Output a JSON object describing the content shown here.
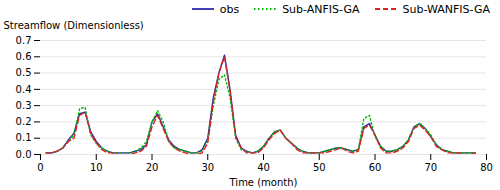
{
  "chart_data": {
    "type": "line",
    "xlabel": "Time (month)",
    "ylabel": "Streamflow (Dimensionless)",
    "xlim": [
      0,
      80
    ],
    "ylim": [
      0,
      0.7
    ],
    "xticks": [
      0,
      10,
      20,
      30,
      40,
      50,
      60,
      70,
      80
    ],
    "yticks": [
      {
        "value": 0,
        "label": "0.0"
      },
      0.1,
      0.2,
      0.3,
      0.4,
      0.5,
      0.6,
      0.7
    ],
    "grid": true,
    "legend": "upper right",
    "x": [
      1,
      2,
      3,
      4,
      5,
      6,
      7,
      8,
      9,
      10,
      11,
      12,
      13,
      14,
      15,
      16,
      17,
      18,
      19,
      20,
      21,
      22,
      23,
      24,
      25,
      26,
      27,
      28,
      29,
      30,
      31,
      32,
      33,
      34,
      35,
      36,
      37,
      38,
      39,
      40,
      41,
      42,
      43,
      44,
      45,
      46,
      47,
      48,
      49,
      50,
      51,
      52,
      53,
      54,
      55,
      56,
      57,
      58,
      59,
      60,
      61,
      62,
      63,
      64,
      65,
      66,
      67,
      68,
      69,
      70,
      71,
      72,
      73,
      74,
      75,
      76,
      77,
      78
    ],
    "series": [
      {
        "name": "obs",
        "color": "#2a2aaa",
        "line_style": "solid",
        "values": [
          0.01,
          0.01,
          0.02,
          0.04,
          0.09,
          0.13,
          0.25,
          0.26,
          0.14,
          0.08,
          0.04,
          0.02,
          0.01,
          0.01,
          0.01,
          0.01,
          0.02,
          0.03,
          0.06,
          0.2,
          0.25,
          0.17,
          0.09,
          0.05,
          0.03,
          0.02,
          0.01,
          0.01,
          0.03,
          0.1,
          0.35,
          0.5,
          0.61,
          0.4,
          0.12,
          0.04,
          0.02,
          0.01,
          0.02,
          0.05,
          0.1,
          0.14,
          0.15,
          0.1,
          0.07,
          0.04,
          0.02,
          0.01,
          0.01,
          0.01,
          0.02,
          0.03,
          0.04,
          0.04,
          0.03,
          0.02,
          0.03,
          0.17,
          0.19,
          0.12,
          0.05,
          0.02,
          0.02,
          0.03,
          0.05,
          0.09,
          0.17,
          0.19,
          0.16,
          0.11,
          0.06,
          0.03,
          0.02,
          0.01,
          0.01,
          0.01,
          0.01,
          0.01
        ]
      },
      {
        "name": "Sub-ANFIS-GA",
        "color": "#00bb00",
        "line_style": "dotted",
        "values": [
          0.01,
          0.01,
          0.02,
          0.04,
          0.08,
          0.12,
          0.28,
          0.29,
          0.12,
          0.07,
          0.04,
          0.02,
          0.01,
          0.01,
          0.01,
          0.01,
          0.02,
          0.04,
          0.08,
          0.2,
          0.27,
          0.2,
          0.08,
          0.04,
          0.03,
          0.02,
          0.01,
          0.01,
          0.02,
          0.08,
          0.3,
          0.46,
          0.49,
          0.35,
          0.1,
          0.03,
          0.02,
          0.01,
          0.02,
          0.05,
          0.1,
          0.14,
          0.15,
          0.1,
          0.07,
          0.04,
          0.02,
          0.01,
          0.01,
          0.01,
          0.02,
          0.03,
          0.04,
          0.04,
          0.03,
          0.02,
          0.03,
          0.22,
          0.24,
          0.11,
          0.05,
          0.02,
          0.02,
          0.03,
          0.05,
          0.09,
          0.17,
          0.19,
          0.16,
          0.12,
          0.06,
          0.03,
          0.02,
          0.01,
          0.01,
          0.01,
          0.01,
          0.01
        ]
      },
      {
        "name": "Sub-WANFIS-GA",
        "color": "#dd2222",
        "line_style": "dashed",
        "values": [
          0.01,
          0.01,
          0.02,
          0.04,
          0.08,
          0.1,
          0.24,
          0.26,
          0.13,
          0.07,
          0.03,
          0.01,
          0.01,
          0.0,
          0.0,
          0.0,
          0.01,
          0.02,
          0.05,
          0.17,
          0.24,
          0.16,
          0.08,
          0.04,
          0.02,
          0.01,
          0.0,
          0.0,
          0.01,
          0.07,
          0.33,
          0.5,
          0.6,
          0.39,
          0.11,
          0.04,
          0.01,
          0.01,
          0.01,
          0.04,
          0.09,
          0.13,
          0.15,
          0.1,
          0.07,
          0.03,
          0.01,
          0.01,
          0.01,
          0.01,
          0.01,
          0.02,
          0.03,
          0.04,
          0.02,
          0.01,
          0.02,
          0.16,
          0.18,
          0.12,
          0.04,
          0.01,
          0.01,
          0.02,
          0.04,
          0.08,
          0.16,
          0.18,
          0.15,
          0.11,
          0.05,
          0.03,
          0.01,
          0.01,
          0.01,
          0.0,
          0.0,
          0.01
        ]
      }
    ]
  }
}
